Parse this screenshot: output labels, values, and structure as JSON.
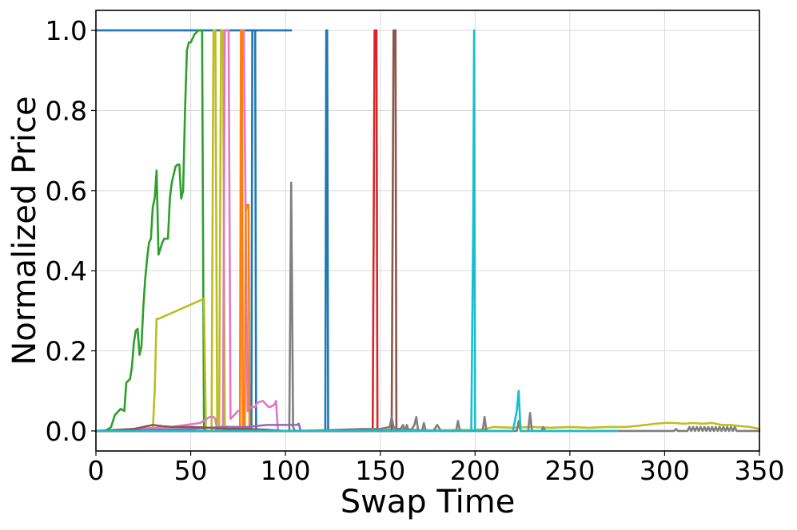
{
  "chart_data": {
    "type": "line",
    "title": "",
    "xlabel": "Swap Time",
    "ylabel": "Normalized Price",
    "xlim": [
      0,
      350
    ],
    "ylim": [
      -0.05,
      1.05
    ],
    "xticks": [
      0,
      50,
      100,
      150,
      200,
      250,
      300,
      350
    ],
    "yticks": [
      0.0,
      0.2,
      0.4,
      0.6,
      0.8,
      1.0
    ],
    "xtick_labels": [
      "0",
      "50",
      "100",
      "150",
      "200",
      "250",
      "300",
      "350"
    ],
    "ytick_labels": [
      "0.0",
      "0.2",
      "0.4",
      "0.6",
      "0.8",
      "1.0"
    ],
    "grid": true,
    "legend": "none",
    "series": [
      {
        "color": "#1f77b4",
        "x": [
          0,
          103
        ],
        "y": [
          1.0,
          1.0
        ]
      },
      {
        "color": "#1f77b4",
        "x": [
          0,
          80,
          82,
          82.5,
          83,
          84,
          84.5,
          85,
          100,
          120,
          121,
          121.5,
          122,
          122.5,
          123,
          140,
          160,
          180
        ],
        "y": [
          0.0,
          0.0,
          0.005,
          1.0,
          1.0,
          1.0,
          0.0,
          0.0,
          0.0,
          0.0,
          0.0,
          1.0,
          1.0,
          0.0,
          0.0,
          0.0,
          0.005,
          0.0
        ]
      },
      {
        "color": "#2ca02c",
        "x": [
          0,
          5,
          8,
          10,
          13,
          15,
          16,
          18,
          19,
          20,
          21,
          22,
          23,
          24,
          25,
          26,
          27,
          28,
          29,
          30,
          31,
          32,
          33,
          35,
          36,
          37,
          38,
          39,
          40,
          41,
          42,
          43,
          44,
          45,
          46,
          47,
          48,
          49,
          50,
          51,
          52,
          53,
          54,
          55,
          56,
          57,
          58,
          59,
          60,
          61,
          62,
          63,
          64,
          65,
          66,
          67,
          68,
          69,
          70,
          80,
          90,
          100
        ],
        "y": [
          0.0,
          0.0,
          0.01,
          0.04,
          0.055,
          0.05,
          0.12,
          0.13,
          0.16,
          0.22,
          0.25,
          0.255,
          0.19,
          0.21,
          0.31,
          0.38,
          0.43,
          0.47,
          0.48,
          0.56,
          0.58,
          0.65,
          0.44,
          0.47,
          0.48,
          0.48,
          0.48,
          0.58,
          0.62,
          0.64,
          0.66,
          0.665,
          0.665,
          0.58,
          0.6,
          0.8,
          0.95,
          0.97,
          0.97,
          0.98,
          0.99,
          0.995,
          1.0,
          1.0,
          1.0,
          0.0,
          0.0,
          0.0,
          0.0,
          0.0,
          0.0,
          0.0,
          0.005,
          0.01,
          0.01,
          0.01,
          0.01,
          0.01,
          0.01,
          0.005,
          0.0,
          0.0
        ]
      },
      {
        "color": "#bcbd22",
        "x": [
          0,
          30,
          31,
          32,
          33,
          57,
          58,
          59,
          60,
          61,
          62,
          63,
          64,
          65,
          66,
          67,
          68,
          69,
          70,
          71,
          80,
          100,
          120,
          150,
          180,
          200,
          205,
          210,
          220,
          230,
          240,
          250,
          260,
          270,
          280,
          290,
          295,
          300,
          305,
          310,
          315,
          320,
          325,
          330,
          335,
          340,
          345,
          350
        ],
        "y": [
          0.0,
          0.0,
          0.1,
          0.28,
          0.28,
          0.33,
          0.0,
          0.0,
          0.0,
          0.0,
          1.0,
          1.0,
          0.0,
          0.0,
          1.0,
          1.0,
          0.0,
          0.0,
          0.0,
          0.0,
          0.0,
          0.0,
          0.002,
          0.003,
          0.002,
          0.003,
          0.005,
          0.01,
          0.008,
          0.01,
          0.008,
          0.01,
          0.008,
          0.01,
          0.01,
          0.015,
          0.018,
          0.02,
          0.02,
          0.018,
          0.02,
          0.018,
          0.02,
          0.015,
          0.015,
          0.012,
          0.01,
          0.005
        ]
      },
      {
        "color": "#e377c2",
        "x": [
          0,
          20,
          40,
          55,
          60,
          62,
          63,
          64,
          65,
          67,
          68,
          69,
          70,
          71,
          72,
          73,
          74,
          75,
          76,
          77,
          78,
          80,
          82,
          84,
          85,
          88,
          90,
          91,
          92,
          94,
          95,
          96,
          97
        ],
        "y": [
          0.0,
          0.005,
          0.01,
          0.02,
          0.035,
          0.035,
          0.03,
          0.0,
          0.0,
          0.0,
          1.0,
          1.0,
          1.0,
          0.03,
          0.035,
          0.04,
          0.045,
          0.05,
          0.05,
          1.0,
          1.0,
          0.05,
          0.06,
          0.06,
          0.07,
          0.075,
          0.065,
          0.06,
          0.06,
          0.065,
          0.075,
          0.0,
          0.0
        ]
      },
      {
        "color": "#ff7f0e",
        "x": [
          0,
          70,
          75,
          76,
          76.5,
          77,
          77.5,
          78,
          78.5,
          79,
          80,
          80.5,
          81,
          81.5,
          82,
          90,
          100
        ],
        "y": [
          0.0,
          0.0,
          0.0,
          0.0,
          1.0,
          1.0,
          0.0,
          0.0,
          0.0,
          0.55,
          0.565,
          0.565,
          0.0,
          0.0,
          0.0,
          0.0,
          0.0
        ]
      },
      {
        "color": "#9467bd",
        "x": [
          0,
          50,
          60,
          70,
          80,
          90,
          95,
          100,
          106,
          107,
          108,
          110
        ],
        "y": [
          0.0,
          0.005,
          0.008,
          0.01,
          0.01,
          0.015,
          0.015,
          0.015,
          0.015,
          0.018,
          0.0,
          0.0
        ]
      },
      {
        "color": "#8c564b",
        "x": [
          0,
          20,
          25,
          30,
          35,
          40,
          50,
          60,
          70,
          80,
          90,
          100,
          120,
          140,
          155,
          156,
          157,
          157.5,
          158,
          158.5,
          159,
          160,
          170
        ],
        "y": [
          0.0,
          0.005,
          0.01,
          0.015,
          0.012,
          0.01,
          0.01,
          0.008,
          0.005,
          0.005,
          0.003,
          0.0,
          0.0,
          0.0,
          0.0,
          0.0,
          1.0,
          1.0,
          1.0,
          0.0,
          0.0,
          0.0,
          0.0
        ]
      },
      {
        "color": "#d62728",
        "x": [
          0,
          140,
          145,
          146,
          147,
          147.5,
          148,
          148.5,
          149,
          150,
          160
        ],
        "y": [
          0.0,
          0.0,
          0.0,
          0.0,
          1.0,
          1.0,
          1.0,
          0.0,
          0.0,
          0.0,
          0.0
        ]
      },
      {
        "color": "#7f7f7f",
        "x": [
          0,
          100,
          102,
          103,
          104,
          105,
          110,
          140,
          150,
          155,
          156,
          157,
          160,
          162,
          163,
          164,
          165,
          166,
          168,
          169,
          170,
          172,
          173,
          174,
          178,
          180,
          182,
          190,
          191,
          192,
          200,
          204,
          205,
          206,
          215,
          220,
          222,
          223,
          224,
          228,
          229,
          230,
          231,
          235,
          236,
          237,
          240,
          260,
          280,
          300,
          305,
          306,
          307,
          310,
          312,
          313,
          314,
          315,
          316,
          317,
          318,
          319,
          320,
          321,
          322,
          323,
          324,
          325,
          326,
          327,
          328,
          329,
          330,
          331,
          332,
          333,
          334,
          335,
          336,
          337,
          338,
          350
        ],
        "y": [
          0.0,
          0.0,
          0.0,
          0.62,
          0.01,
          0.0,
          0.0,
          0.005,
          0.005,
          0.01,
          0.035,
          0.01,
          0.0,
          0.015,
          0.0,
          0.015,
          0.0,
          0.0,
          0.015,
          0.035,
          0.0,
          0.0,
          0.02,
          0.0,
          0.0,
          0.015,
          0.0,
          0.0,
          0.025,
          0.0,
          0.0,
          0.0,
          0.035,
          0.0,
          0.0,
          0.0,
          0.0,
          0.025,
          0.0,
          0.0,
          0.045,
          0.0,
          0.0,
          0.0,
          0.01,
          0.0,
          0.0,
          0.0,
          0.0,
          0.0,
          0.0,
          0.005,
          0.0,
          0.0,
          0.0,
          0.01,
          0.0,
          0.01,
          0.0,
          0.01,
          0.0,
          0.01,
          0.0,
          0.01,
          0.0,
          0.01,
          0.0,
          0.01,
          0.0,
          0.01,
          0.0,
          0.01,
          0.0,
          0.01,
          0.0,
          0.01,
          0.0,
          0.01,
          0.0,
          0.01,
          0.0,
          0.0
        ]
      },
      {
        "color": "#17becf",
        "x": [
          0,
          50,
          100,
          130,
          140,
          150,
          198,
          199,
          199.5,
          200,
          201,
          210,
          220,
          222,
          223,
          224,
          225,
          230,
          250,
          260,
          270,
          275
        ],
        "y": [
          0.0,
          0.0,
          0.0,
          0.0,
          0.0,
          0.0,
          0.0,
          0.5,
          1.0,
          0.0,
          0.0,
          0.0,
          0.0,
          0.05,
          0.1,
          0.0,
          0.0,
          0.0,
          0.0,
          0.0,
          0.0,
          0.0
        ]
      }
    ]
  }
}
